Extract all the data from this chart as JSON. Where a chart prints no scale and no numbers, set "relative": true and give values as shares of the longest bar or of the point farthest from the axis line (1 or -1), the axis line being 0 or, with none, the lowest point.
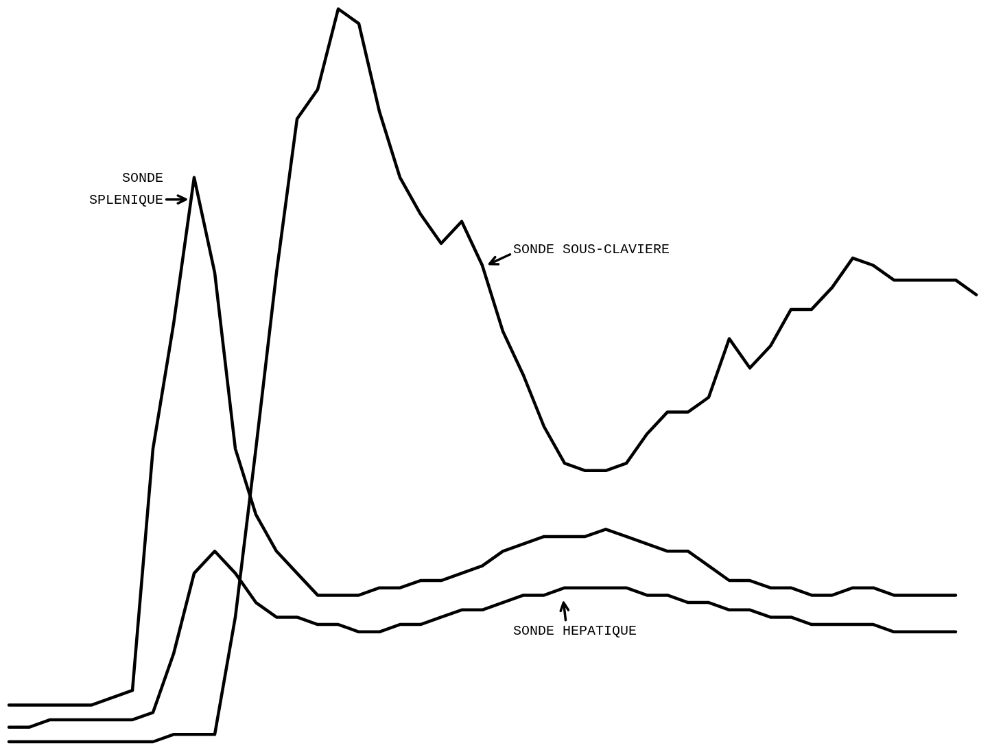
{
  "chart_data": {
    "type": "line",
    "relative": true,
    "categories": [
      null,
      null,
      null,
      null,
      null,
      null,
      null,
      null,
      null,
      null,
      null,
      null,
      null,
      null,
      null,
      null,
      null,
      null,
      null,
      null,
      null,
      null,
      null,
      null,
      null,
      null,
      null,
      null,
      null,
      null,
      null,
      null,
      null,
      null,
      null,
      null,
      null,
      null,
      null,
      null,
      null,
      null,
      null,
      null,
      null,
      null,
      null,
      null
    ],
    "series": [
      {
        "name": "SONDE SPLENIQUE",
        "color": "#000000",
        "values": [
          0.05,
          0.05,
          0.05,
          0.05,
          0.05,
          0.06,
          0.07,
          0.4,
          0.57,
          0.77,
          0.64,
          0.4,
          0.31,
          0.26,
          0.23,
          0.2,
          0.2,
          0.2,
          0.21,
          0.21,
          0.22,
          0.22,
          0.23,
          0.24,
          0.26,
          0.27,
          0.28,
          0.28,
          0.28,
          0.29,
          0.28,
          0.27,
          0.26,
          0.26,
          0.24,
          0.22,
          0.22,
          0.21,
          0.21,
          0.2,
          0.2,
          0.21,
          0.21,
          0.2,
          0.2,
          0.2,
          0.2,
          null
        ]
      },
      {
        "name": "SONDE SOUS-CLAVIERE",
        "color": "#000000",
        "values": [
          0,
          0,
          0,
          0,
          0,
          0,
          0,
          0,
          0.01,
          0.01,
          0.01,
          0.17,
          0.4,
          0.64,
          0.85,
          0.89,
          1,
          0.98,
          0.86,
          0.77,
          0.72,
          0.68,
          0.71,
          0.65,
          0.56,
          0.5,
          0.43,
          0.38,
          0.37,
          0.37,
          0.38,
          0.42,
          0.45,
          0.45,
          0.47,
          0.55,
          0.51,
          0.54,
          0.59,
          0.59,
          0.62,
          0.66,
          0.65,
          0.63,
          0.63,
          0.63,
          0.63,
          0.61
        ]
      },
      {
        "name": "SONDE HEPATIQUE",
        "color": "#000000",
        "values": [
          0.02,
          0.02,
          0.03,
          0.03,
          0.03,
          0.03,
          0.03,
          0.04,
          0.12,
          0.23,
          0.26,
          0.23,
          0.19,
          0.17,
          0.17,
          0.16,
          0.16,
          0.15,
          0.15,
          0.16,
          0.16,
          0.17,
          0.18,
          0.18,
          0.19,
          0.2,
          0.2,
          0.21,
          0.21,
          0.21,
          0.21,
          0.2,
          0.2,
          0.19,
          0.19,
          0.18,
          0.18,
          0.17,
          0.17,
          0.16,
          0.16,
          0.16,
          0.16,
          0.15,
          0.15,
          0.15,
          0.15,
          null
        ]
      }
    ]
  }
}
